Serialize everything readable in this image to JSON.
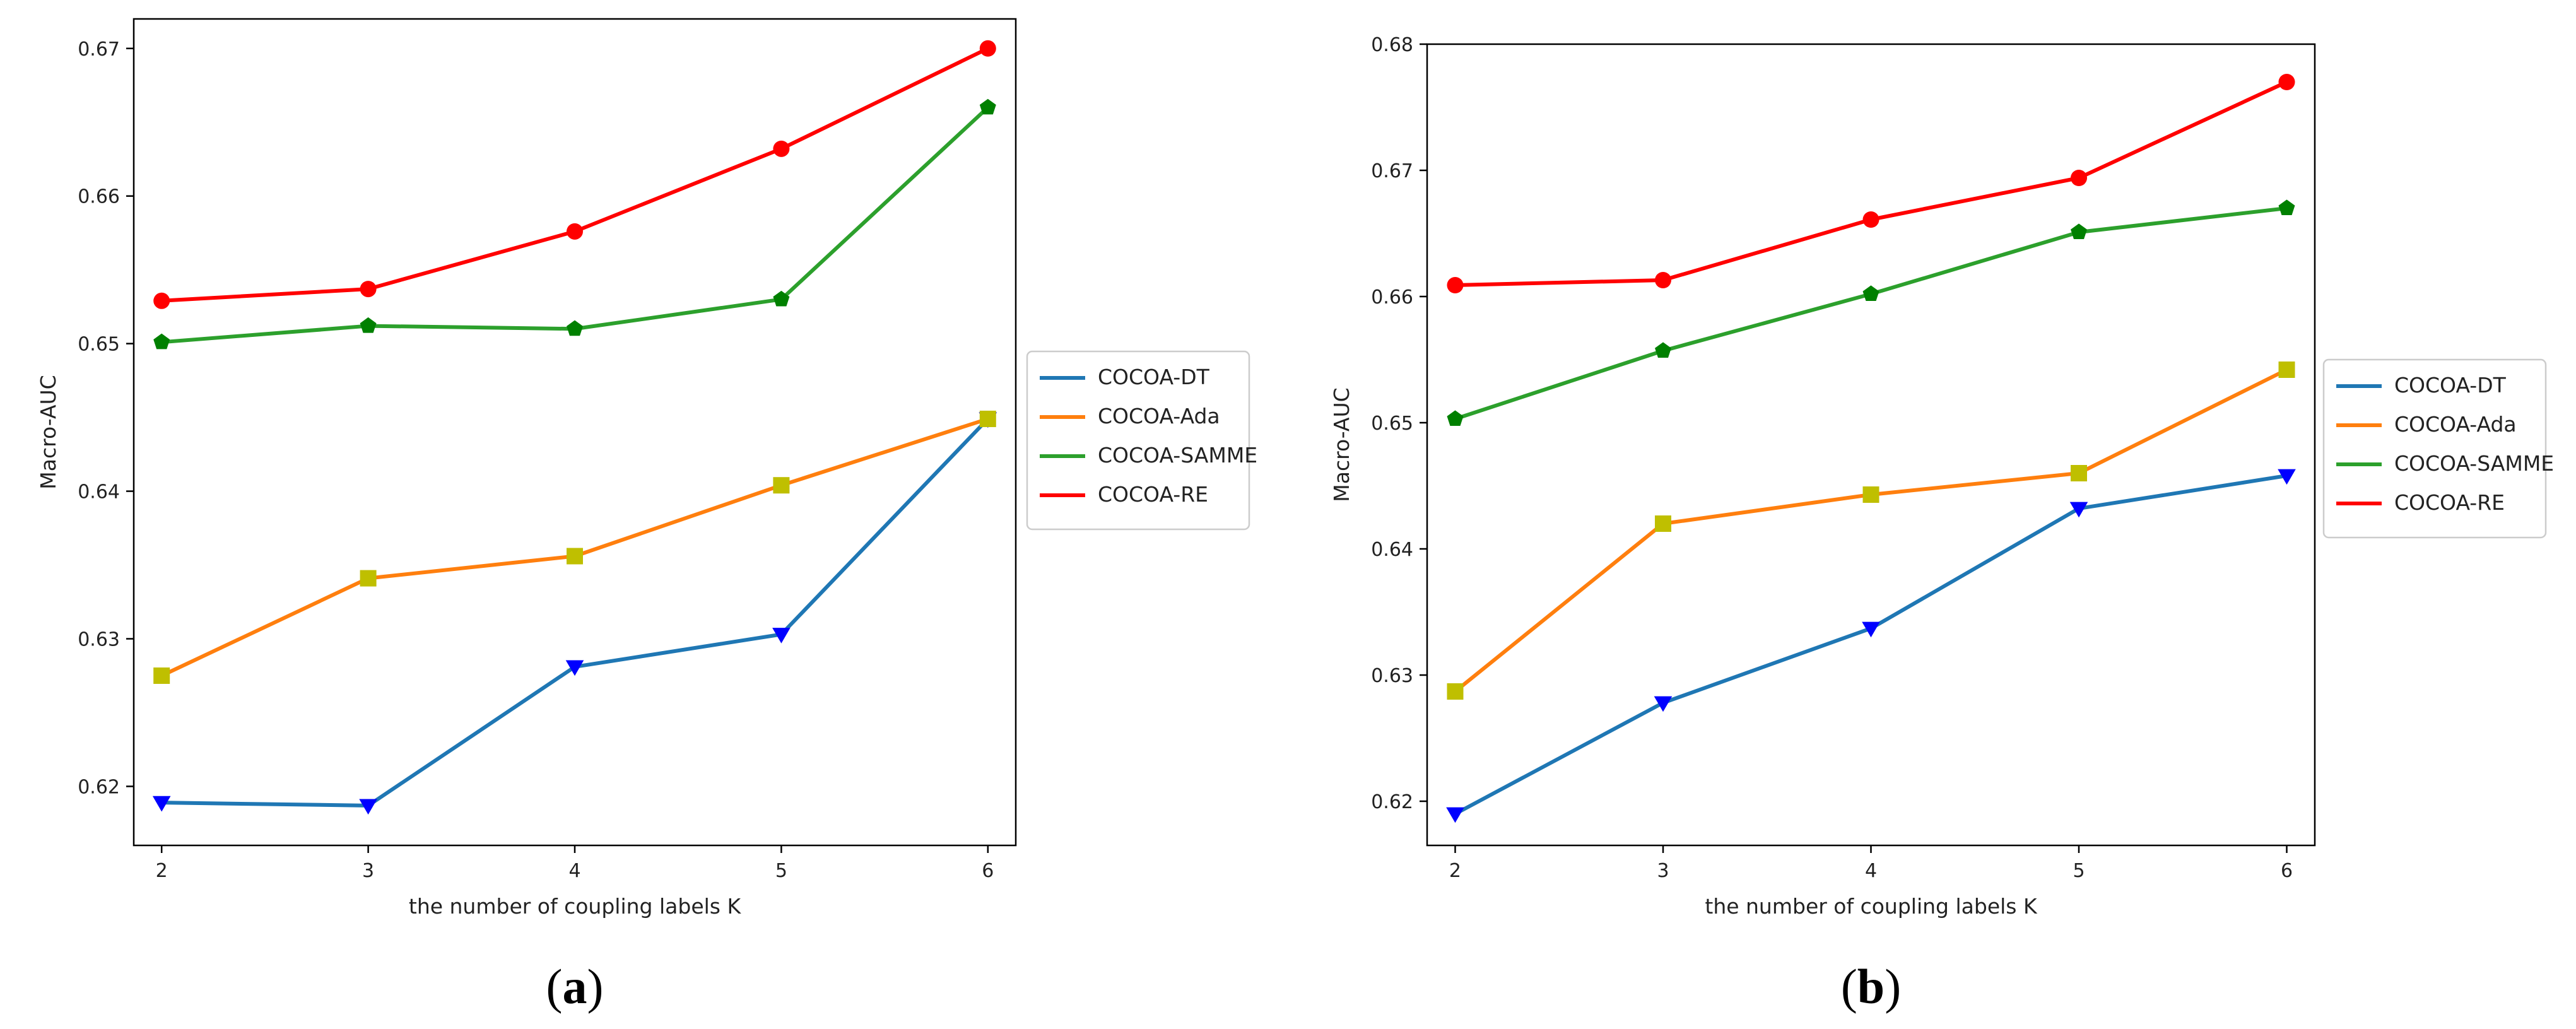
{
  "chart_data": [
    {
      "type": "line",
      "panel_label": "a",
      "panel_caption": [
        "(",
        "a",
        ")"
      ],
      "title": "",
      "xlabel": "the number of coupling labels K",
      "ylabel": "Macro-AUC",
      "x": [
        2,
        3,
        4,
        5,
        6
      ],
      "xticks": [
        "2",
        "3",
        "4",
        "5",
        "6"
      ],
      "yticks": [
        "0.62",
        "0.63",
        "0.64",
        "0.65",
        "0.66",
        "0.67"
      ],
      "ylim": [
        0.616,
        0.672
      ],
      "grid": false,
      "legend_position": "right-outside",
      "series": [
        {
          "name": "COCOA-DT",
          "color": "#1f77b4",
          "marker": "triangle-down",
          "marker_color": "#0000ff",
          "values": [
            0.6189,
            0.6187,
            0.6281,
            0.6303,
            0.6449
          ]
        },
        {
          "name": "COCOA-Ada",
          "color": "#ff7f0e",
          "marker": "square",
          "marker_color": "#bfbf00",
          "values": [
            0.6275,
            0.6341,
            0.6356,
            0.6404,
            0.6449
          ]
        },
        {
          "name": "COCOA-SAMME",
          "color": "#2ca02c",
          "marker": "pentagon",
          "marker_color": "#008000",
          "values": [
            0.6501,
            0.6512,
            0.651,
            0.653,
            0.666
          ]
        },
        {
          "name": "COCOA-RE",
          "color": "#ff0000",
          "marker": "circle",
          "marker_color": "#ff0000",
          "values": [
            0.6529,
            0.6537,
            0.6576,
            0.6632,
            0.67
          ]
        }
      ]
    },
    {
      "type": "line",
      "panel_label": "b",
      "panel_caption": [
        "(",
        "b",
        ")"
      ],
      "title": "",
      "xlabel": "the number of coupling labels K",
      "ylabel": "Macro-AUC",
      "x": [
        2,
        3,
        4,
        5,
        6
      ],
      "xticks": [
        "2",
        "3",
        "4",
        "5",
        "6"
      ],
      "yticks": [
        "0.62",
        "0.63",
        "0.64",
        "0.65",
        "0.66",
        "0.67",
        "0.68"
      ],
      "ylim": [
        0.6165,
        0.68
      ],
      "grid": false,
      "legend_position": "right-outside",
      "series": [
        {
          "name": "COCOA-DT",
          "color": "#1f77b4",
          "marker": "triangle-down",
          "marker_color": "#0000ff",
          "values": [
            0.619,
            0.6278,
            0.6337,
            0.6432,
            0.6458
          ]
        },
        {
          "name": "COCOA-Ada",
          "color": "#ff7f0e",
          "marker": "square",
          "marker_color": "#bfbf00",
          "values": [
            0.6287,
            0.642,
            0.6443,
            0.646,
            0.6542
          ]
        },
        {
          "name": "COCOA-SAMME",
          "color": "#2ca02c",
          "marker": "pentagon",
          "marker_color": "#008000",
          "values": [
            0.6503,
            0.6557,
            0.6602,
            0.6651,
            0.667
          ]
        },
        {
          "name": "COCOA-RE",
          "color": "#ff0000",
          "marker": "circle",
          "marker_color": "#ff0000",
          "values": [
            0.6609,
            0.6613,
            0.6661,
            0.6694,
            0.677
          ]
        }
      ]
    }
  ]
}
